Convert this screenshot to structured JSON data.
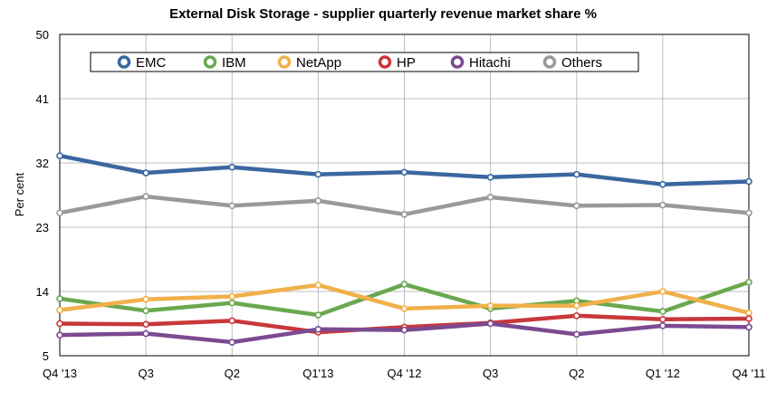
{
  "chart_data": {
    "type": "line",
    "title": "External Disk Storage - supplier quarterly revenue market share %",
    "xlabel": "",
    "ylabel": "Per cent",
    "categories": [
      "Q4 '13",
      "Q3",
      "Q2",
      "Q1'13",
      "Q4 '12",
      "Q3",
      "Q2",
      "Q1 '12",
      "Q4 '11"
    ],
    "yticks": [
      5,
      14,
      23,
      32,
      41,
      50
    ],
    "ylim": [
      5,
      50
    ],
    "grid": true,
    "legend_position": "top",
    "series": [
      {
        "name": "EMC",
        "color": "#3a67a0",
        "values": [
          33.0,
          30.6,
          31.4,
          30.4,
          30.7,
          30.0,
          30.4,
          29.0,
          29.4
        ]
      },
      {
        "name": "IBM",
        "color": "#6aa84f",
        "values": [
          13.0,
          11.3,
          12.4,
          10.7,
          15.0,
          11.6,
          12.7,
          11.2,
          15.3
        ]
      },
      {
        "name": "NetApp",
        "color": "#f0b04a",
        "values": [
          11.4,
          12.9,
          13.3,
          14.9,
          11.6,
          12.0,
          12.0,
          14.0,
          11.0
        ]
      },
      {
        "name": "HP",
        "color": "#c8373a",
        "values": [
          9.5,
          9.4,
          9.9,
          8.3,
          9.0,
          9.6,
          10.6,
          10.1,
          10.2
        ]
      },
      {
        "name": "Hitachi",
        "color": "#7b4a91",
        "values": [
          7.9,
          8.1,
          6.9,
          8.7,
          8.6,
          9.5,
          8.0,
          9.2,
          9.0
        ]
      },
      {
        "name": "Others",
        "color": "#999999",
        "values": [
          25.0,
          27.3,
          26.0,
          26.7,
          24.8,
          27.2,
          26.0,
          26.1,
          25.0
        ]
      }
    ]
  }
}
